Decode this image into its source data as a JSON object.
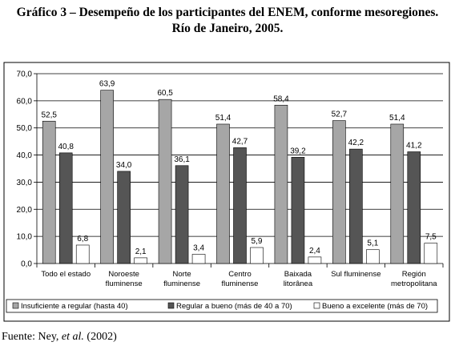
{
  "title_line1": "Gráfico 3 – Desempeño de los participantes del ENEM, conforme mesoregiones.",
  "title_line2": "Río de Janeiro, 2005.",
  "source": {
    "prefix": "Fuente: Ney, ",
    "italic": "et al.",
    "suffix": " (2002)"
  },
  "chart_data": {
    "type": "bar",
    "title": "",
    "xlabel": "",
    "ylabel": "",
    "ylim": [
      0,
      70
    ],
    "yticks": [
      "0,0",
      "10,0",
      "20,0",
      "30,0",
      "40,0",
      "50,0",
      "60,0",
      "70,0"
    ],
    "grid": true,
    "legend_position": "bottom",
    "categories": [
      [
        "Todo el estado"
      ],
      [
        "Noroeste",
        "fluminense"
      ],
      [
        "Norte",
        "fluminense"
      ],
      [
        "Centro",
        "fluminense"
      ],
      [
        "Baixada",
        "litorânea"
      ],
      [
        "Sul fluminense"
      ],
      [
        "Región",
        "metropolitana"
      ]
    ],
    "series": [
      {
        "name": "Insuficiente a regular (hasta 40)",
        "color": "#a6a6a6",
        "values": [
          52.5,
          63.9,
          60.5,
          51.4,
          58.4,
          52.7,
          51.4
        ],
        "labels": [
          "52,5",
          "63,9",
          "60,5",
          "51,4",
          "58,4",
          "52,7",
          "51,4"
        ]
      },
      {
        "name": "Regular a bueno (más de 40 a 70)",
        "color": "#555555",
        "values": [
          40.8,
          34.0,
          36.1,
          42.7,
          39.2,
          42.2,
          41.2
        ],
        "labels": [
          "40,8",
          "34,0",
          "36,1",
          "42,7",
          "39,2",
          "42,2",
          "41,2"
        ]
      },
      {
        "name": "Bueno a excelente (más de 70)",
        "color": "#ffffff",
        "values": [
          6.8,
          2.1,
          3.4,
          5.9,
          2.4,
          5.1,
          7.5
        ],
        "labels": [
          "6,8",
          "2,1",
          "3,4",
          "5,9",
          "2,4",
          "5,1",
          "7,5"
        ]
      }
    ]
  }
}
